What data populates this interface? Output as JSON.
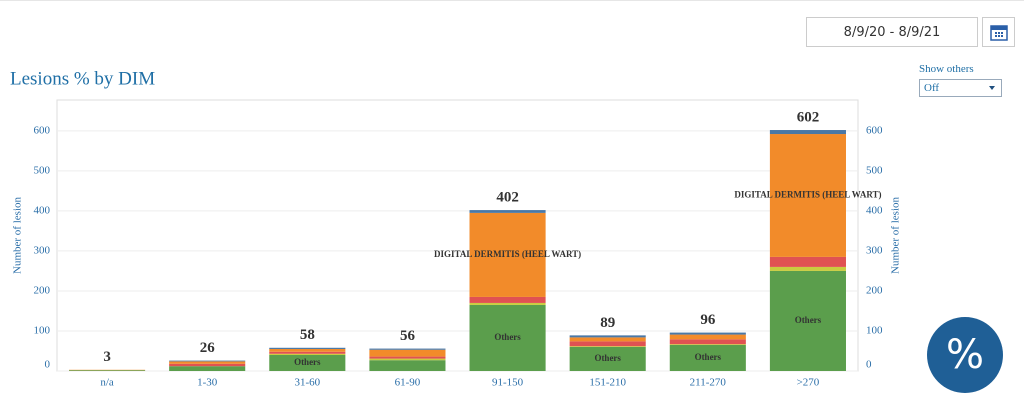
{
  "date_range": "8/9/20 - 8/9/21",
  "show_others": {
    "label": "Show others",
    "value": "Off"
  },
  "percent_button": "%",
  "chart_data": {
    "type": "stacked_bar",
    "title": "Lesions % by DIM",
    "ylabel": "Number of lesion",
    "categories": [
      "n/a",
      "1-30",
      "31-60",
      "61-90",
      "91-150",
      "151-210",
      "211-270",
      ">270"
    ],
    "series": [
      {
        "name": "Others",
        "color": "#5b9e4c",
        "values": [
          2,
          12,
          40,
          27,
          165,
          60,
          65,
          250
        ]
      },
      {
        "color": "#c9cc3f",
        "values": [
          0,
          0,
          3,
          4,
          5,
          2,
          2,
          10
        ]
      },
      {
        "color": "#e05252",
        "values": [
          0,
          6,
          5,
          5,
          15,
          12,
          12,
          25
        ]
      },
      {
        "name": "DIGITAL DERMITIS (HEEL WART)",
        "color": "#f28b2a",
        "values": [
          1,
          6,
          7,
          17,
          210,
          10,
          12,
          307
        ]
      },
      {
        "color": "#4a78a6",
        "values": [
          0,
          2,
          3,
          3,
          7,
          5,
          5,
          10
        ]
      }
    ],
    "totals": [
      3,
      26,
      58,
      56,
      402,
      89,
      96,
      602
    ],
    "ylim": [
      0,
      677
    ],
    "yticks": [
      0,
      100,
      200,
      300,
      400,
      500,
      600
    ],
    "grid": true
  }
}
